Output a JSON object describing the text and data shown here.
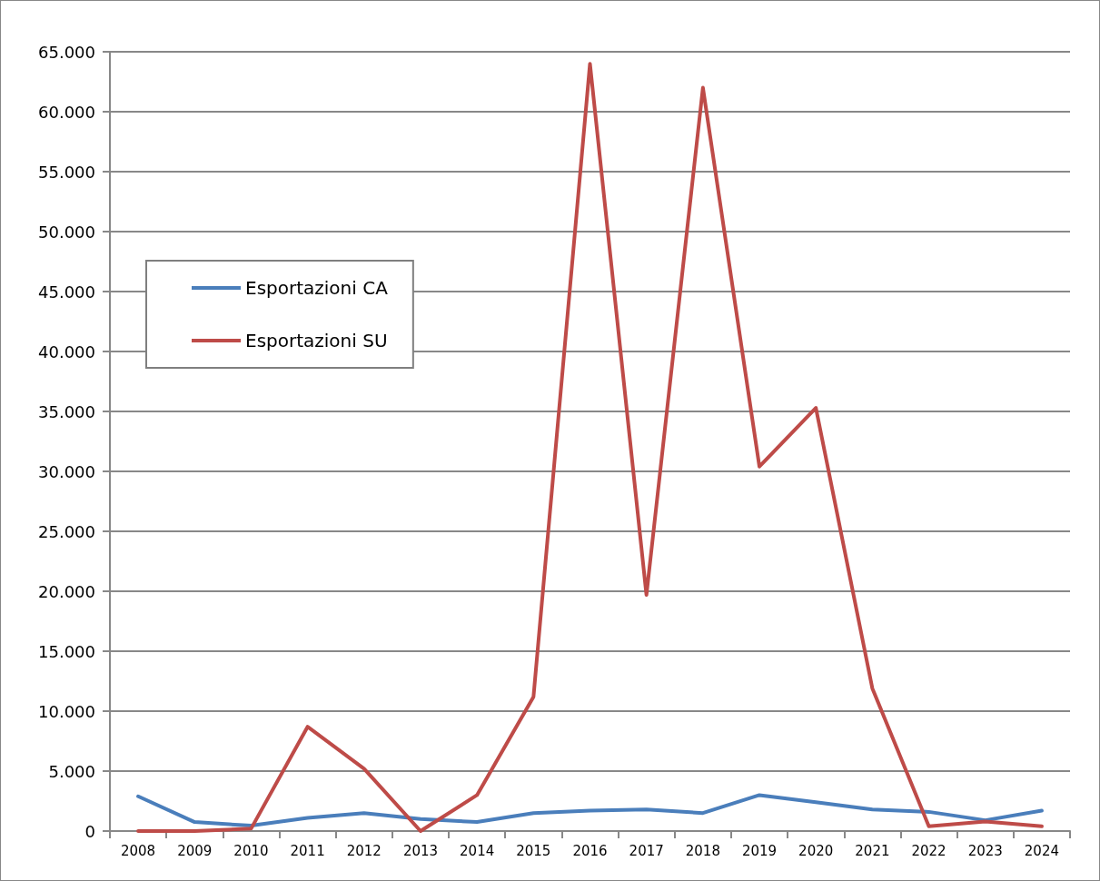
{
  "chart_data": {
    "type": "line",
    "categories": [
      "2008",
      "2009",
      "2010",
      "2011",
      "2012",
      "2013",
      "2014",
      "2015",
      "2016",
      "2017",
      "2018",
      "2019",
      "2020",
      "2021",
      "2022",
      "2023",
      "2024"
    ],
    "series": [
      {
        "name": "Esportazioni CA",
        "color": "#4a7ebb",
        "values": [
          2900,
          750,
          450,
          1100,
          1500,
          1000,
          750,
          1500,
          1700,
          1800,
          1500,
          3000,
          2400,
          1800,
          1600,
          900,
          1700
        ]
      },
      {
        "name": "Esportazioni SU",
        "color": "#be4b48",
        "values": [
          0,
          0,
          200,
          8700,
          5200,
          0,
          3000,
          11200,
          64000,
          19700,
          62000,
          30400,
          35300,
          11900,
          400,
          800,
          400
        ]
      }
    ],
    "ylim": [
      0,
      65000
    ],
    "yticks": [
      {
        "value": 0,
        "label": "0"
      },
      {
        "value": 5000,
        "label": "5.000"
      },
      {
        "value": 10000,
        "label": "10.000"
      },
      {
        "value": 15000,
        "label": "15.000"
      },
      {
        "value": 20000,
        "label": "20.000"
      },
      {
        "value": 25000,
        "label": "25.000"
      },
      {
        "value": 30000,
        "label": "30.000"
      },
      {
        "value": 35000,
        "label": "35.000"
      },
      {
        "value": 40000,
        "label": "40.000"
      },
      {
        "value": 45000,
        "label": "45.000"
      },
      {
        "value": 50000,
        "label": "50.000"
      },
      {
        "value": 55000,
        "label": "55.000"
      },
      {
        "value": 60000,
        "label": "60.000"
      },
      {
        "value": 65000,
        "label": "65.000"
      }
    ],
    "grid": "y",
    "legend": "left",
    "marker": "none",
    "line_style": "solid"
  }
}
